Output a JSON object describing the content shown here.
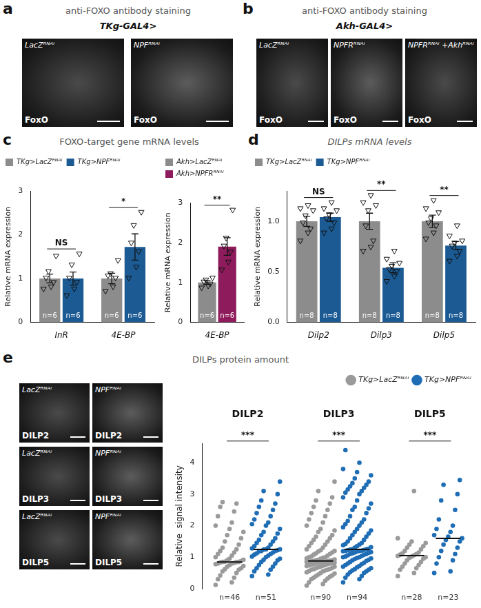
{
  "chart_data": [
    {
      "type": "bar",
      "categories": [
        "InR",
        "4E-BP"
      ],
      "y_label": "Relative mRNA expression",
      "ylim": [
        0,
        3
      ],
      "yticks": [
        0,
        1,
        2,
        3
      ],
      "grid": false,
      "legend": "top-left",
      "series": [
        {
          "name": "TKg>LacZᴿᴺᴬⁱ",
          "color": "#8c8c8c",
          "marker": "triangle",
          "values": [
            1.0,
            1.0
          ],
          "errors": [
            0.1,
            0.12
          ],
          "points": [
            [
              0.75,
              0.8,
              0.9,
              1.0,
              1.15,
              1.5
            ],
            [
              0.7,
              0.8,
              1.0,
              1.05,
              1.1,
              1.4
            ]
          ],
          "n_labels": [
            "n=6",
            "n=6"
          ]
        },
        {
          "name": "TKg>NPFᴿᴺᴬⁱ",
          "color": "#1b5a93",
          "marker": "triangle",
          "values": [
            1.0,
            1.72
          ],
          "errors": [
            0.15,
            0.3
          ],
          "points": [
            [
              0.6,
              0.75,
              0.9,
              1.0,
              1.3,
              1.55
            ],
            [
              1.0,
              1.25,
              1.6,
              1.8,
              2.2,
              2.5
            ]
          ],
          "n_labels": [
            "n=6",
            "n=6"
          ]
        }
      ],
      "annotations": [
        {
          "category": "InR",
          "text": "NS"
        },
        {
          "category": "4E-BP",
          "text": "*"
        }
      ]
    },
    {
      "type": "bar",
      "categories": [
        "4E-BP"
      ],
      "y_label": "Relative mRNA expression",
      "ylim": [
        0,
        3
      ],
      "yticks": [
        0,
        1,
        2,
        3
      ],
      "grid": false,
      "legend": "top-left",
      "series": [
        {
          "name": "Akh>LacZᴿᴺᴬⁱ",
          "color": "#8c8c8c",
          "marker": "triangle",
          "values": [
            1.0
          ],
          "errors": [
            0.05
          ],
          "points": [
            [
              0.85,
              0.9,
              0.95,
              1.0,
              1.05,
              1.1
            ]
          ],
          "n_labels": [
            "n=6"
          ]
        },
        {
          "name": "Akh>NPFRᴿᴺᴬⁱ",
          "color": "#8e1c5c",
          "marker": "triangle",
          "values": [
            1.9
          ],
          "errors": [
            0.22
          ],
          "points": [
            [
              1.3,
              1.5,
              1.75,
              1.9,
              2.1,
              2.8
            ]
          ],
          "n_labels": [
            "n=6"
          ]
        }
      ],
      "annotations": [
        {
          "category": "4E-BP",
          "text": "**"
        }
      ]
    },
    {
      "type": "bar",
      "categories": [
        "Dilp2",
        "Dilp3",
        "Dilp5"
      ],
      "y_label": "Relative mRNA expression",
      "ylim": [
        0,
        1.3
      ],
      "yticks": [
        {
          "value": 0,
          "label": "0.0"
        },
        {
          "value": 0.5,
          "label": "0.5"
        },
        {
          "value": 1,
          "label": "1.0"
        }
      ],
      "grid": false,
      "legend": "top-left",
      "series": [
        {
          "name": "TKg>LacZᴿᴺᴬⁱ",
          "color": "#8c8c8c",
          "marker": "triangle",
          "values": [
            1.0,
            1.0,
            1.0
          ],
          "errors": [
            0.05,
            0.08,
            0.06
          ],
          "points": [
            [
              0.8,
              0.88,
              0.92,
              0.98,
              1.05,
              1.1,
              1.12,
              1.15
            ],
            [
              0.7,
              0.74,
              0.8,
              0.95,
              1.1,
              1.15,
              1.18,
              1.25
            ],
            [
              0.82,
              0.88,
              0.95,
              0.98,
              1.02,
              1.08,
              1.12,
              1.2
            ]
          ],
          "n_labels": [
            "n=8",
            "n=8",
            "n=8"
          ]
        },
        {
          "name": "TKg>NPFᴿᴺᴬⁱ",
          "color": "#1b5a93",
          "marker": "triangle",
          "values": [
            1.04,
            0.54,
            0.76
          ],
          "errors": [
            0.04,
            0.05,
            0.04
          ],
          "points": [
            [
              0.88,
              0.92,
              0.98,
              1.02,
              1.06,
              1.1,
              1.12,
              1.18
            ],
            [
              0.4,
              0.45,
              0.5,
              0.52,
              0.55,
              0.58,
              0.62,
              0.7
            ],
            [
              0.6,
              0.65,
              0.7,
              0.75,
              0.78,
              0.8,
              0.85,
              0.95
            ]
          ],
          "n_labels": [
            "n=8",
            "n=8",
            "n=8"
          ]
        }
      ],
      "annotations": [
        {
          "category": "Dilp2",
          "text": "NS"
        },
        {
          "category": "Dilp3",
          "text": "**"
        },
        {
          "category": "Dilp5",
          "text": "**"
        }
      ]
    },
    {
      "type": "strip",
      "categories": [
        "DILP2",
        "DILP3",
        "DILP5"
      ],
      "y_label": "Relative  signal intensity",
      "ylim": [
        0,
        4.6
      ],
      "yticks": [
        0,
        1,
        2,
        3,
        4
      ],
      "grid": false,
      "legend": "top-right",
      "series": [
        {
          "name": "TKg>LacZᴿᴺᴬⁱ",
          "color": "#9a9a9a",
          "marker": "circle",
          "medians": [
            0.85,
            0.88,
            1.05
          ],
          "points": [
            [
              0.12,
              0.2,
              0.3,
              0.35,
              0.42,
              0.5,
              0.55,
              0.6,
              0.62,
              0.65,
              0.7,
              0.72,
              0.75,
              0.78,
              0.8,
              0.8,
              0.82,
              0.83,
              0.84,
              0.85,
              0.85,
              0.86,
              0.88,
              0.9,
              0.92,
              0.95,
              1.0,
              1.05,
              1.1,
              1.15,
              1.2,
              1.25,
              1.3,
              1.4,
              1.5,
              1.6,
              1.7,
              1.8,
              1.9,
              2.0,
              2.1,
              2.3,
              2.45,
              2.6,
              2.7,
              2.75
            ],
            [
              0.1,
              0.15,
              0.2,
              0.25,
              0.3,
              0.32,
              0.35,
              0.38,
              0.4,
              0.42,
              0.45,
              0.48,
              0.5,
              0.52,
              0.55,
              0.56,
              0.58,
              0.6,
              0.6,
              0.62,
              0.63,
              0.65,
              0.66,
              0.68,
              0.7,
              0.7,
              0.72,
              0.73,
              0.74,
              0.75,
              0.76,
              0.78,
              0.78,
              0.8,
              0.8,
              0.81,
              0.82,
              0.83,
              0.84,
              0.85,
              0.85,
              0.86,
              0.86,
              0.87,
              0.88,
              0.88,
              0.89,
              0.9,
              0.9,
              0.92,
              0.93,
              0.95,
              0.96,
              0.98,
              1.0,
              1.0,
              1.02,
              1.05,
              1.08,
              1.1,
              1.12,
              1.15,
              1.18,
              1.2,
              1.22,
              1.25,
              1.3,
              1.35,
              1.4,
              1.45,
              1.5,
              1.55,
              1.6,
              1.65,
              1.7,
              1.8,
              1.85,
              1.9,
              2.0,
              2.1,
              2.2,
              2.3,
              2.4,
              2.5,
              2.6,
              2.7,
              2.8,
              2.9,
              3.1,
              3.4
            ],
            [
              0.4,
              0.5,
              0.6,
              0.65,
              0.7,
              0.75,
              0.8,
              0.85,
              0.9,
              0.95,
              0.98,
              1.0,
              1.02,
              1.04,
              1.06,
              1.08,
              1.1,
              1.12,
              1.15,
              1.2,
              1.25,
              1.3,
              1.35,
              1.4,
              1.45,
              1.5,
              1.6,
              3.1
            ]
          ],
          "n_labels": [
            "n=46",
            "n=90",
            "n=28"
          ]
        },
        {
          "name": "TKg>NPFᴿᴺᴬⁱ",
          "color": "#1f6db5",
          "marker": "circle",
          "medians": [
            1.25,
            1.25,
            1.6
          ],
          "points": [
            [
              0.4,
              0.45,
              0.55,
              0.6,
              0.65,
              0.7,
              0.75,
              0.8,
              0.85,
              0.9,
              0.92,
              0.95,
              1.0,
              1.02,
              1.05,
              1.08,
              1.1,
              1.12,
              1.15,
              1.18,
              1.2,
              1.2,
              1.22,
              1.24,
              1.25,
              1.25,
              1.28,
              1.3,
              1.35,
              1.4,
              1.45,
              1.5,
              1.55,
              1.6,
              1.7,
              1.75,
              1.8,
              1.9,
              2.0,
              2.05,
              2.1,
              2.2,
              2.3,
              2.4,
              2.5,
              2.6,
              2.7,
              2.8,
              3.0,
              3.1,
              3.4
            ],
            [
              0.2,
              0.3,
              0.35,
              0.4,
              0.45,
              0.5,
              0.52,
              0.55,
              0.58,
              0.6,
              0.62,
              0.65,
              0.68,
              0.7,
              0.72,
              0.75,
              0.78,
              0.8,
              0.82,
              0.85,
              0.88,
              0.9,
              0.92,
              0.94,
              0.96,
              0.98,
              1.0,
              1.0,
              1.02,
              1.04,
              1.06,
              1.08,
              1.1,
              1.1,
              1.12,
              1.14,
              1.15,
              1.16,
              1.18,
              1.19,
              1.2,
              1.2,
              1.21,
              1.22,
              1.23,
              1.24,
              1.25,
              1.25,
              1.27,
              1.3,
              1.32,
              1.35,
              1.38,
              1.4,
              1.42,
              1.45,
              1.5,
              1.55,
              1.6,
              1.65,
              1.7,
              1.75,
              1.8,
              1.85,
              1.9,
              1.95,
              2.0,
              2.05,
              2.1,
              2.15,
              2.2,
              2.3,
              2.4,
              2.5,
              2.55,
              2.6,
              2.7,
              2.8,
              2.9,
              3.0,
              3.05,
              3.1,
              3.15,
              3.2,
              3.25,
              3.3,
              3.35,
              3.4,
              3.5,
              3.6,
              3.7,
              3.8,
              4.0,
              4.4
            ],
            [
              0.5,
              0.55,
              0.8,
              0.9,
              1.0,
              1.1,
              1.2,
              1.3,
              1.4,
              1.5,
              1.55,
              1.6,
              1.65,
              1.7,
              1.8,
              1.9,
              2.0,
              2.2,
              2.5,
              2.8,
              3.0,
              3.3,
              3.45
            ]
          ],
          "n_labels": [
            "n=51",
            "n=94",
            "n=23"
          ]
        }
      ],
      "annotations": [
        {
          "category": "DILP2",
          "text": "***"
        },
        {
          "category": "DILP3",
          "text": "***"
        },
        {
          "category": "DILP5",
          "text": "***"
        }
      ]
    }
  ],
  "panels": {
    "a": {
      "letter": "a",
      "title": "anti-FOXO antibody staining",
      "driver": "TKg-GAL4>",
      "images": [
        {
          "genotype": "LacZᴿᴺᴬⁱ",
          "stain": "FoxO"
        },
        {
          "genotype": "NPFᴿᴺᴬⁱ",
          "stain": "FoxO"
        }
      ]
    },
    "b": {
      "letter": "b",
      "title": "anti-FOXO antibody staining",
      "driver": "Akh-GAL4>",
      "images": [
        {
          "genotype": "LacZᴿᴺᴬⁱ",
          "stain": "FoxO"
        },
        {
          "genotype": "NPFRᴿᴺᴬⁱ",
          "stain": "FoxO"
        },
        {
          "genotype": "NPFRᴿᴺᴬⁱ +Akhᴿᴺᴬⁱ",
          "stain": "FoxO"
        }
      ]
    },
    "c": {
      "letter": "c",
      "title": "FOXO-target gene mRNA levels"
    },
    "d": {
      "letter": "d",
      "title": "DILPs mRNA levels"
    },
    "e": {
      "letter": "e",
      "title": "DILPs protein amount",
      "images": [
        {
          "genotype": "LacZᴿᴺᴬⁱ",
          "stain": "DILP2"
        },
        {
          "genotype": "NPFᴿᴺᴬⁱ",
          "stain": "DILP2"
        },
        {
          "genotype": "LacZᴿᴺᴬⁱ",
          "stain": "DILP3"
        },
        {
          "genotype": "NPFᴿᴺᴬⁱ",
          "stain": "DILP3"
        },
        {
          "genotype": "LacZᴿᴺᴬⁱ",
          "stain": "DILP5"
        },
        {
          "genotype": "NPFᴿᴺᴬⁱ",
          "stain": "DILP5"
        }
      ]
    }
  }
}
